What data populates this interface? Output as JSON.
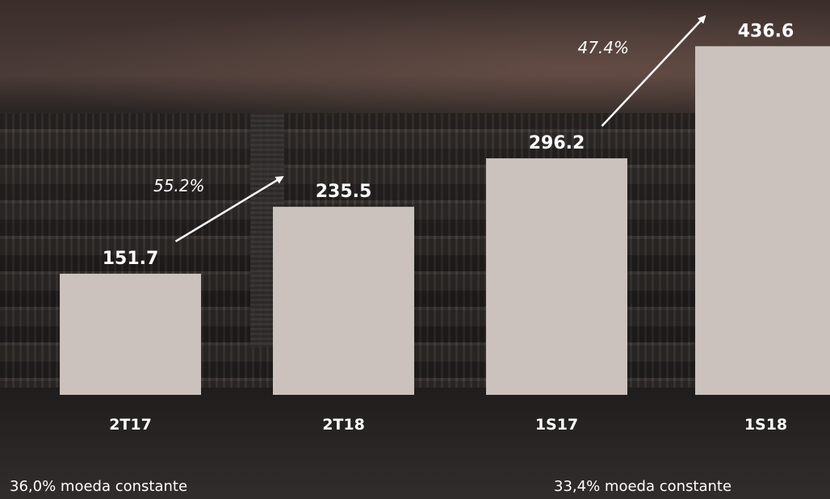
{
  "chart_data": {
    "type": "bar",
    "title": "",
    "xlabel": "",
    "ylabel": "",
    "categories": [
      "2T17",
      "2T18",
      "1S17",
      "1S18"
    ],
    "values": [
      151.7,
      235.5,
      296.2,
      436.6
    ],
    "value_labels": [
      "151.7",
      "235.5",
      "296.2",
      "436.6"
    ],
    "ylim": [
      0,
      450
    ],
    "grid": false,
    "bar_color": "#cbc2bd",
    "text_color": "#ffffff",
    "annotations": [
      {
        "type": "growth-arrow",
        "from_category": "2T17",
        "to_category": "2T18",
        "text": "55.2%"
      },
      {
        "type": "growth-arrow",
        "from_category": "1S17",
        "to_category": "1S18",
        "text": "47.4%"
      }
    ]
  },
  "footnotes": {
    "left": "36,0% moeda constante",
    "right": "33,4% moeda constante"
  }
}
